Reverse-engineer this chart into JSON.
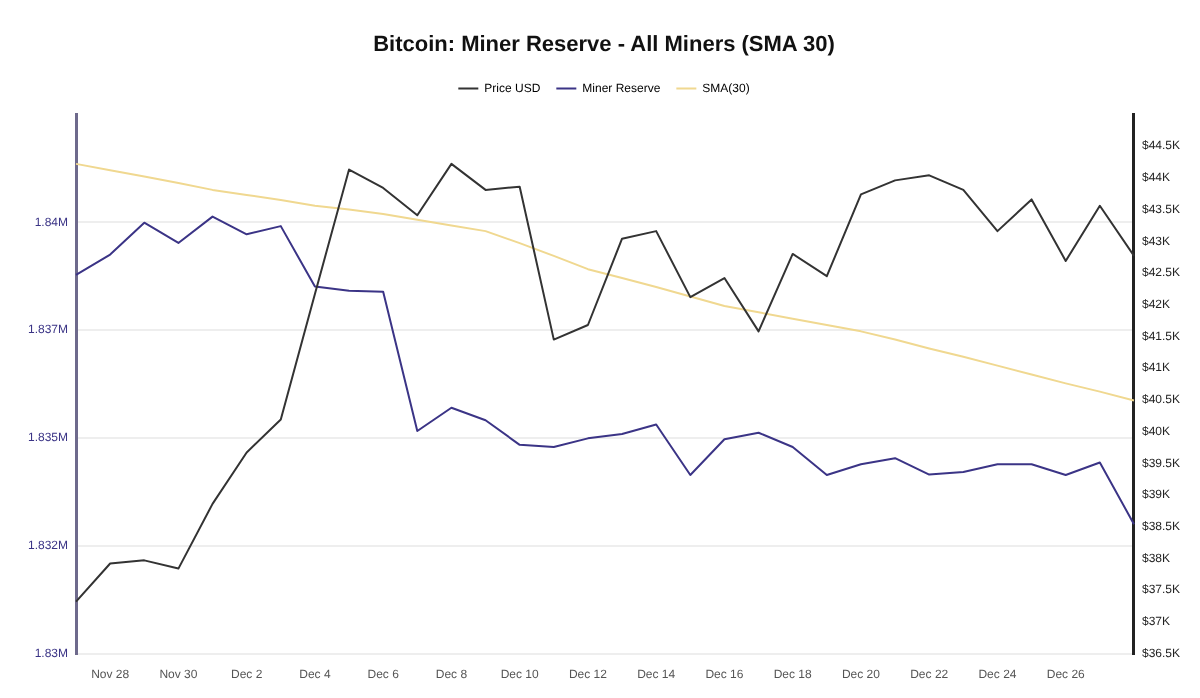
{
  "chart_data": {
    "type": "line",
    "title": "Bitcoin: Miner Reserve - All Miners (SMA 30)",
    "categories": [
      null,
      "Nov 28",
      null,
      "Nov 30",
      null,
      "Dec 2",
      null,
      "Dec 4",
      null,
      "Dec 6",
      null,
      "Dec 8",
      null,
      "Dec 10",
      null,
      "Dec 12",
      null,
      "Dec 14",
      null,
      "Dec 16",
      null,
      "Dec 18",
      null,
      "Dec 20",
      null,
      "Dec 22",
      null,
      "Dec 24",
      null,
      "Dec 26",
      null,
      null
    ],
    "series": [
      {
        "name": "Price USD",
        "color": "#333333",
        "axis": "y2",
        "values": [
          37320,
          37920,
          37970,
          37840,
          38860,
          39670,
          40190,
          42170,
          44130,
          43840,
          43410,
          44220,
          43810,
          43860,
          41450,
          41680,
          43040,
          43160,
          42120,
          42420,
          41580,
          42800,
          42450,
          43740,
          43960,
          44040,
          43810,
          43160,
          43660,
          42690,
          43560,
          42770
        ]
      },
      {
        "name": "Miner Reserve",
        "color": "#3b3486",
        "values": [
          1838780,
          1839250,
          1839990,
          1839520,
          1840130,
          1839720,
          1839910,
          1838510,
          1838410,
          1838390,
          1835160,
          1835700,
          1835410,
          1834840,
          1834790,
          1834990,
          1835090,
          1835310,
          1834140,
          1834970,
          1835120,
          1834790,
          1834140,
          1834390,
          1834530,
          1834150,
          1834210,
          1834390,
          1834390,
          1834140,
          1834430,
          1833000
        ]
      },
      {
        "name": "SMA(30)",
        "color": "#f0d890",
        "axis": "y2",
        "values": [
          44220,
          44120,
          44020,
          43920,
          43810,
          43730,
          43650,
          43560,
          43500,
          43430,
          43340,
          43250,
          43160,
          42970,
          42770,
          42560,
          42420,
          42280,
          42130,
          41980,
          41880,
          41780,
          41680,
          41580,
          41450,
          41310,
          41180,
          41040,
          40900,
          40760,
          40630,
          40490
        ]
      }
    ],
    "ylim": [
      1830000,
      1842500
    ],
    "yticks": [
      {
        "value": 1830000,
        "label": "1.83M"
      },
      {
        "value": 1832500,
        "label": "1.832M"
      },
      {
        "value": 1835000,
        "label": "1.835M"
      },
      {
        "value": 1837500,
        "label": "1.837M"
      },
      {
        "value": 1840000,
        "label": "1.84M"
      }
    ],
    "y2lim": [
      36500,
      45000
    ],
    "y2ticks": [
      {
        "value": 36500,
        "label": "$36.5K"
      },
      {
        "value": 37000,
        "label": "$37K"
      },
      {
        "value": 37500,
        "label": "$37.5K"
      },
      {
        "value": 38000,
        "label": "$38K"
      },
      {
        "value": 38500,
        "label": "$38.5K"
      },
      {
        "value": 39000,
        "label": "$39K"
      },
      {
        "value": 39500,
        "label": "$39.5K"
      },
      {
        "value": 40000,
        "label": "$40K"
      },
      {
        "value": 40500,
        "label": "$40.5K"
      },
      {
        "value": 41000,
        "label": "$41K"
      },
      {
        "value": 41500,
        "label": "$41.5K"
      },
      {
        "value": 42000,
        "label": "$42K"
      },
      {
        "value": 42500,
        "label": "$42.5K"
      },
      {
        "value": 43000,
        "label": "$43K"
      },
      {
        "value": 43500,
        "label": "$43.5K"
      },
      {
        "value": 44000,
        "label": "$44K"
      },
      {
        "value": 44500,
        "label": "$44.5K"
      }
    ],
    "grid": "y",
    "legend": "top",
    "marker": "none",
    "line_style": "solid"
  }
}
